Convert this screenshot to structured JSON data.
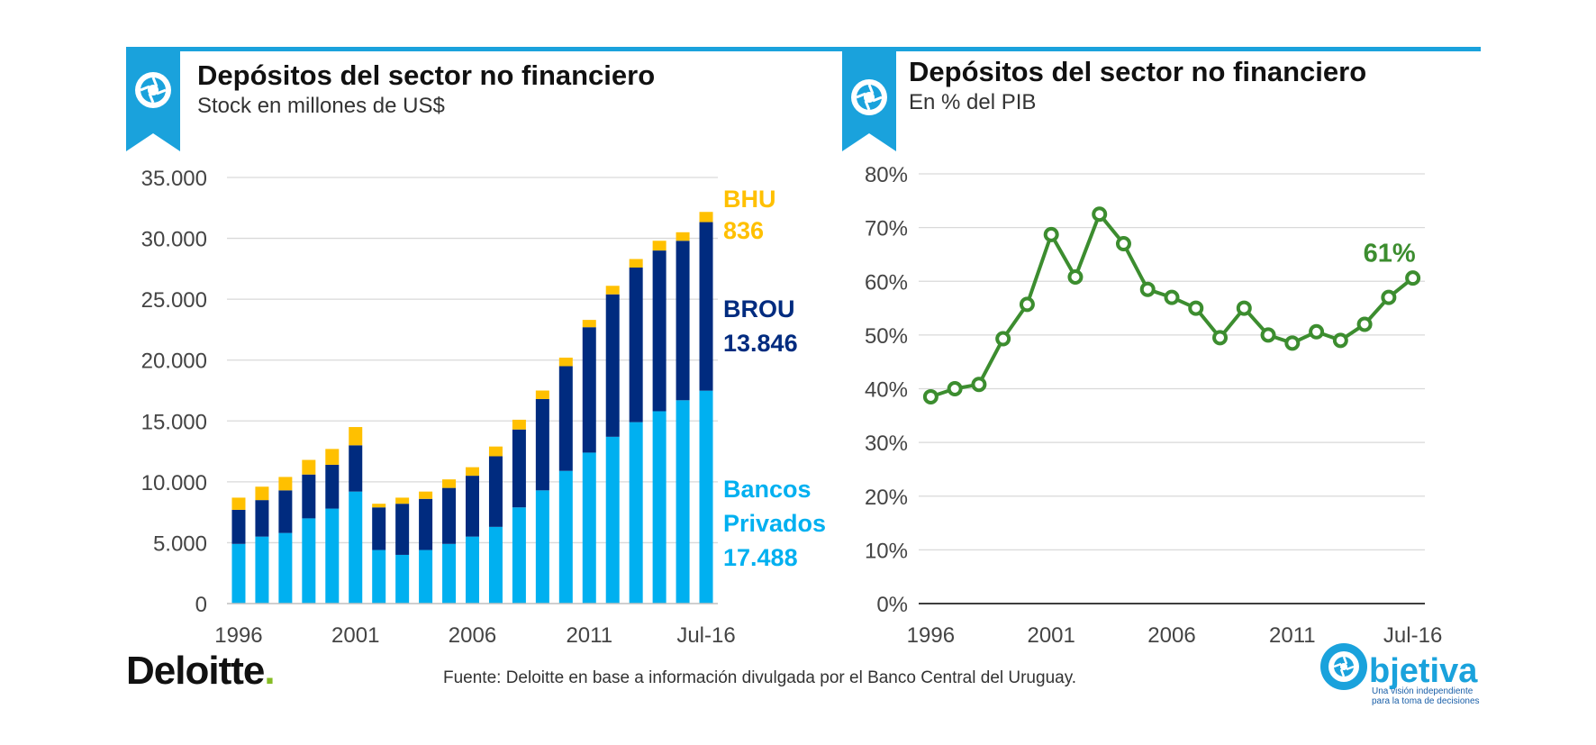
{
  "header": {
    "left_title": "Depósitos del sector no financiero",
    "left_subtitle": "Stock en millones  de US$",
    "right_title": "Depósitos del sector no financiero",
    "right_subtitle": "En % del PIB"
  },
  "footer": {
    "source": "Fuente: Deloitte en base a información divulgada por el Banco Central del Uruguay.",
    "deloitte_word": "Deloitte",
    "deloitte_dot": ".",
    "objetiva_word": "bjetiva",
    "objetiva_tagline_1": "Una visión independiente",
    "objetiva_tagline_2": "para la toma de decisiones"
  },
  "icons": {
    "badge_icon": "aperture-icon",
    "objetiva_icon": "aperture-icon"
  },
  "colors": {
    "accent": "#1aa2dc",
    "privados": "#00b0f0",
    "brou": "#002b7f",
    "bhu": "#ffc000",
    "gdp_line": "#3c8d2f"
  },
  "chart_data": [
    {
      "type": "bar",
      "stacked": true,
      "categories": [
        "1996",
        "1997",
        "1998",
        "1999",
        "2000",
        "2001",
        "2002",
        "2003",
        "2004",
        "2005",
        "2006",
        "2007",
        "2008",
        "2009",
        "2010",
        "2011",
        "2012",
        "2013",
        "2014",
        "2015",
        "Jul-16"
      ],
      "x_tick_labels": [
        "1996",
        "2001",
        "2006",
        "2011",
        "Jul-16"
      ],
      "series": [
        {
          "name": "Bancos Privados",
          "label_lines": [
            "Bancos",
            "Privados",
            "17.488"
          ],
          "color": "#00b0f0",
          "values": [
            4900,
            5500,
            5800,
            7000,
            7800,
            9200,
            4400,
            4000,
            4400,
            4900,
            5500,
            6300,
            7900,
            9300,
            10900,
            12400,
            13700,
            14900,
            15800,
            16700,
            17488
          ]
        },
        {
          "name": "BROU",
          "label_lines": [
            "BROU",
            "13.846"
          ],
          "color": "#002b7f",
          "values": [
            2800,
            3000,
            3500,
            3600,
            3600,
            3800,
            3500,
            4200,
            4200,
            4600,
            5000,
            5800,
            6400,
            7500,
            8600,
            10300,
            11700,
            12700,
            13200,
            13100,
            13846
          ]
        },
        {
          "name": "BHU",
          "label_lines": [
            "BHU",
            "836"
          ],
          "color": "#ffc000",
          "values": [
            1000,
            1100,
            1100,
            1200,
            1300,
            1500,
            300,
            500,
            600,
            700,
            700,
            800,
            800,
            700,
            700,
            600,
            700,
            700,
            800,
            700,
            836
          ]
        }
      ],
      "y_ticks": [
        "0",
        "5.000",
        "10.000",
        "15.000",
        "20.000",
        "25.000",
        "30.000",
        "35.000"
      ],
      "ylim": [
        0,
        35000
      ],
      "grid": true,
      "legend": "inline-right"
    },
    {
      "type": "line",
      "x": [
        "1996",
        "1997",
        "1998",
        "1999",
        "2000",
        "2001",
        "2002",
        "2003",
        "2004",
        "2005",
        "2006",
        "2007",
        "2008",
        "2009",
        "2010",
        "2011",
        "2012",
        "2013",
        "2014",
        "2015",
        "Jul-16"
      ],
      "x_tick_labels": [
        "1996",
        "2001",
        "2006",
        "2011",
        "Jul-16"
      ],
      "series": [
        {
          "values": [
            38.5,
            40,
            40.8,
            49.3,
            55.7,
            68.7,
            60.8,
            72.5,
            67,
            58.5,
            57,
            55,
            49.5,
            55,
            50,
            48.5,
            50.6,
            49,
            52,
            57,
            60.6
          ],
          "color": "#3c8d2f"
        }
      ],
      "end_label": "61%",
      "y_ticks": [
        "0%",
        "10%",
        "20%",
        "30%",
        "40%",
        "50%",
        "60%",
        "70%",
        "80%"
      ],
      "ylim": [
        0,
        80
      ],
      "grid": true
    }
  ]
}
